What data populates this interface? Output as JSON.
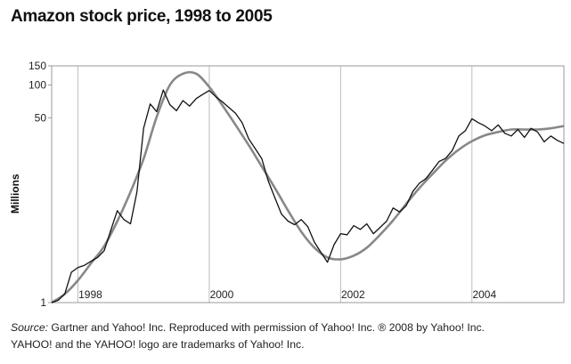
{
  "header": {
    "title": "Amazon stock price, 1998 to 2005"
  },
  "footer": {
    "source_label": "Source:",
    "source_text": " Gartner and Yahoo! Inc. Reproduced with permission of Yahoo! Inc. ® 2008 by Yahoo! Inc.",
    "trademark_text": "YAHOO! and the YAHOO! logo are trademarks of Yahoo! Inc."
  },
  "colors": {
    "price_line": "#111111",
    "trend_line": "#888888",
    "grid": "#bdbdbd",
    "frame": "#9a9a9a"
  },
  "chart_data": {
    "type": "line",
    "title": "Amazon stock price, 1998 to 2005",
    "xlabel": "",
    "ylabel": "Millions",
    "y_scale": "log",
    "xlim": [
      1997.6,
      2005.4
    ],
    "ylim": [
      1,
      150
    ],
    "x_ticks": [
      1998,
      2000,
      2002,
      2004
    ],
    "x_tick_labels": [
      "1998",
      "2000",
      "2002",
      "2004"
    ],
    "y_ticks": [
      1,
      50,
      100,
      150
    ],
    "y_tick_labels": [
      "1",
      "50",
      "100",
      "150"
    ],
    "grid": "vertical",
    "legend": "none",
    "series": [
      {
        "x": [
          1997.6,
          1997.7,
          1997.8,
          1997.9,
          1998.0,
          1998.1,
          1998.2,
          1998.3,
          1998.4,
          1998.5,
          1998.6,
          1998.7,
          1998.8,
          1998.9,
          1999.0,
          1999.1,
          1999.2,
          1999.3,
          1999.4,
          1999.5,
          1999.6,
          1999.7,
          1999.8,
          1999.9,
          2000.0,
          2000.1,
          2000.2,
          2000.3,
          2000.4,
          2000.5,
          2000.6,
          2000.7,
          2000.8,
          2000.9,
          2001.0,
          2001.1,
          2001.2,
          2001.3,
          2001.4,
          2001.5,
          2001.6,
          2001.7,
          2001.8,
          2001.9,
          2002.0,
          2002.1,
          2002.2,
          2002.3,
          2002.4,
          2002.5,
          2002.6,
          2002.7,
          2002.8,
          2002.9,
          2003.0,
          2003.1,
          2003.2,
          2003.3,
          2003.4,
          2003.5,
          2003.6,
          2003.7,
          2003.8,
          2003.9,
          2004.0,
          2004.1,
          2004.2,
          2004.3,
          2004.4,
          2004.5,
          2004.6,
          2004.7,
          2004.8,
          2004.9,
          2005.0,
          2005.1,
          2005.2,
          2005.3,
          2005.4
        ],
        "values": [
          1.0,
          1.05,
          1.2,
          1.9,
          2.1,
          2.2,
          2.4,
          2.6,
          3.0,
          4.6,
          7.0,
          5.8,
          5.3,
          10.5,
          40,
          67,
          57,
          90,
          66,
          58,
          72,
          64,
          75,
          82,
          89,
          78,
          70,
          62,
          55,
          45,
          32,
          26,
          21,
          13,
          9.2,
          6.5,
          5.6,
          5.2,
          5.8,
          5.0,
          3.6,
          2.9,
          2.35,
          3.4,
          4.3,
          4.2,
          5.1,
          4.7,
          5.3,
          4.3,
          4.9,
          5.6,
          7.4,
          6.8,
          7.8,
          10.5,
          12.5,
          13.8,
          16.5,
          19.8,
          21.2,
          25,
          34,
          38,
          49,
          45,
          42,
          38,
          43,
          36,
          34,
          39,
          33,
          40,
          37,
          30,
          34,
          31,
          29
        ]
      },
      {
        "x": [
          1997.6,
          1997.8,
          1998.0,
          1998.2,
          1998.4,
          1998.6,
          1998.8,
          1999.0,
          1999.2,
          1999.4,
          1999.6,
          1999.8,
          2000.0,
          2000.2,
          2000.4,
          2000.6,
          2000.8,
          2001.0,
          2001.2,
          2001.4,
          2001.6,
          2001.8,
          2002.0,
          2002.2,
          2002.4,
          2002.6,
          2002.8,
          2003.0,
          2003.2,
          2003.4,
          2003.6,
          2003.8,
          2004.0,
          2004.2,
          2004.4,
          2004.6,
          2004.8,
          2005.0,
          2005.2,
          2005.4
        ],
        "values": [
          1.0,
          1.2,
          1.6,
          2.3,
          3.3,
          5.6,
          10.4,
          21.0,
          51,
          100,
          127,
          127,
          96,
          65,
          43,
          28,
          17.8,
          11.3,
          7.0,
          4.5,
          3.2,
          2.6,
          2.5,
          2.7,
          3.2,
          4.2,
          5.7,
          8.1,
          11.3,
          15.2,
          20.2,
          25.5,
          30.5,
          34.5,
          37.0,
          39.0,
          39.0,
          39.0,
          40.0,
          42.0
        ]
      }
    ]
  }
}
